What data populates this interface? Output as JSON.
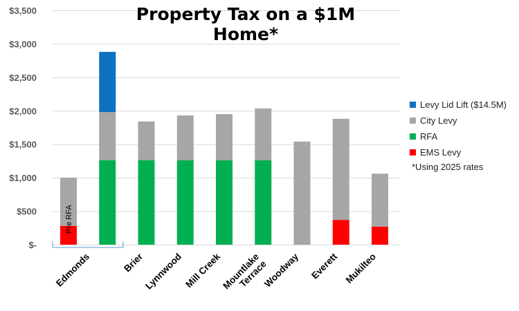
{
  "chart_data": {
    "type": "bar",
    "stacked": true,
    "title": "Property Tax on a $1M Home*",
    "categories": [
      "Edmonds",
      "Edmonds",
      "Brier",
      "Lynnwood",
      "Mill Creek",
      "Mountlake Terrace",
      "Woodway",
      "Everett",
      "Mukilteo"
    ],
    "category_labels": [
      {
        "lines": [
          "Edmonds"
        ]
      },
      {
        "lines": [
          "Brier"
        ]
      },
      {
        "lines": [
          "Lynnwood"
        ]
      },
      {
        "lines": [
          "Mill Creek"
        ]
      },
      {
        "lines": [
          "Mountlake",
          "Terrace"
        ]
      },
      {
        "lines": [
          "Woodway"
        ]
      },
      {
        "lines": [
          "Everett"
        ]
      },
      {
        "lines": [
          "Mukilteo"
        ]
      }
    ],
    "series": [
      {
        "name": "EMS Levy",
        "color": "#ff0000",
        "values": [
          280,
          0,
          0,
          0,
          0,
          0,
          0,
          370,
          270
        ]
      },
      {
        "name": "RFA",
        "color": "#00b050",
        "values": [
          0,
          1260,
          1260,
          1260,
          1260,
          1260,
          0,
          0,
          0
        ]
      },
      {
        "name": "City Levy",
        "color": "#a6a6a6",
        "values": [
          720,
          720,
          580,
          670,
          690,
          775,
          1540,
          1510,
          790
        ]
      },
      {
        "name": "Levy Lid Lift ($14.5M)",
        "color": "#0e70c0",
        "values": [
          0,
          900,
          0,
          0,
          0,
          0,
          0,
          0,
          0
        ]
      }
    ],
    "legend_order": [
      3,
      2,
      1,
      0
    ],
    "legend_position": "right",
    "ylim": [
      0,
      3500
    ],
    "yticks": [
      0,
      500,
      1000,
      1500,
      2000,
      2500,
      3000,
      3500
    ],
    "ytick_labels": [
      "$-",
      "$500",
      "$1,000",
      "$1,500",
      "$2,000",
      "$2,500",
      "$3,000",
      "$3,500"
    ],
    "grid": true,
    "annotation": "Pre RFA",
    "footnote": "*Using 2025 rates"
  }
}
